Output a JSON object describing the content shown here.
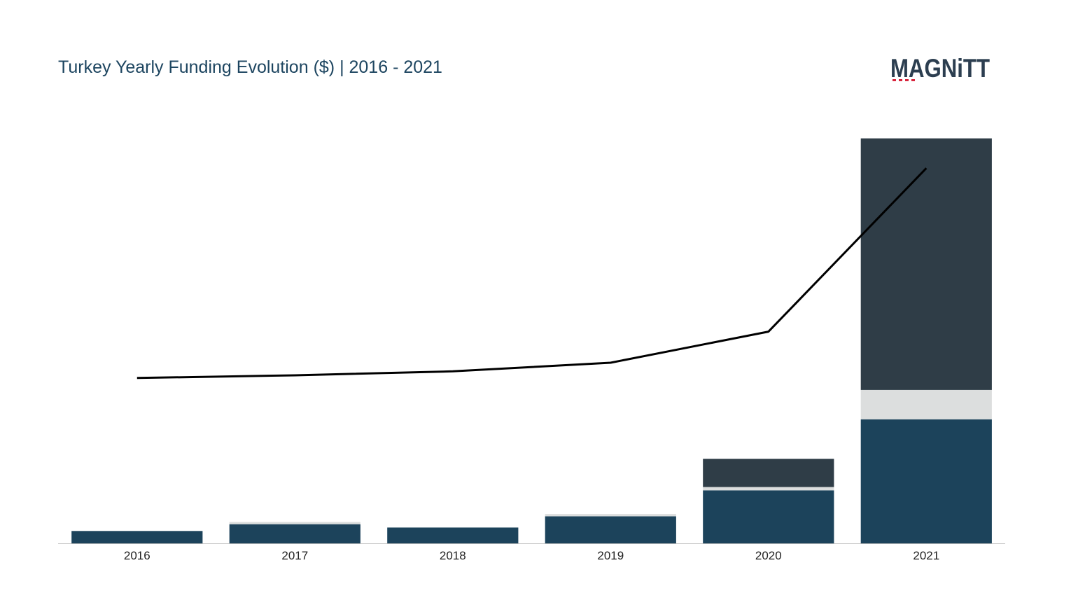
{
  "chart_data": {
    "type": "bar",
    "title": "Turkey Yearly Funding Evolution ($) | 2016 - 2021",
    "categories": [
      "2016",
      "2017",
      "2018",
      "2019",
      "2020",
      "2021"
    ],
    "stacked": true,
    "series": [
      {
        "kind": "bar",
        "color": "#1c435b",
        "values": [
          11,
          17,
          14,
          24,
          47,
          110
        ]
      },
      {
        "kind": "bar",
        "color": "#dcdede",
        "values": [
          0,
          2,
          0,
          2,
          3,
          26
        ]
      },
      {
        "kind": "bar",
        "color": "#2f3d47",
        "values": [
          0,
          0,
          0,
          0,
          25,
          223
        ]
      },
      {
        "kind": "line",
        "color": "#000000",
        "values": [
          250,
          254,
          260,
          273,
          320,
          567
        ]
      }
    ],
    "ylim": [
      0,
      360
    ],
    "line_ylim": [
      0,
      800
    ],
    "grid": false,
    "legend": "none"
  },
  "logo": {
    "text": "MAGNiTT",
    "color": "#2c3e50",
    "accent": "#d8243c"
  }
}
